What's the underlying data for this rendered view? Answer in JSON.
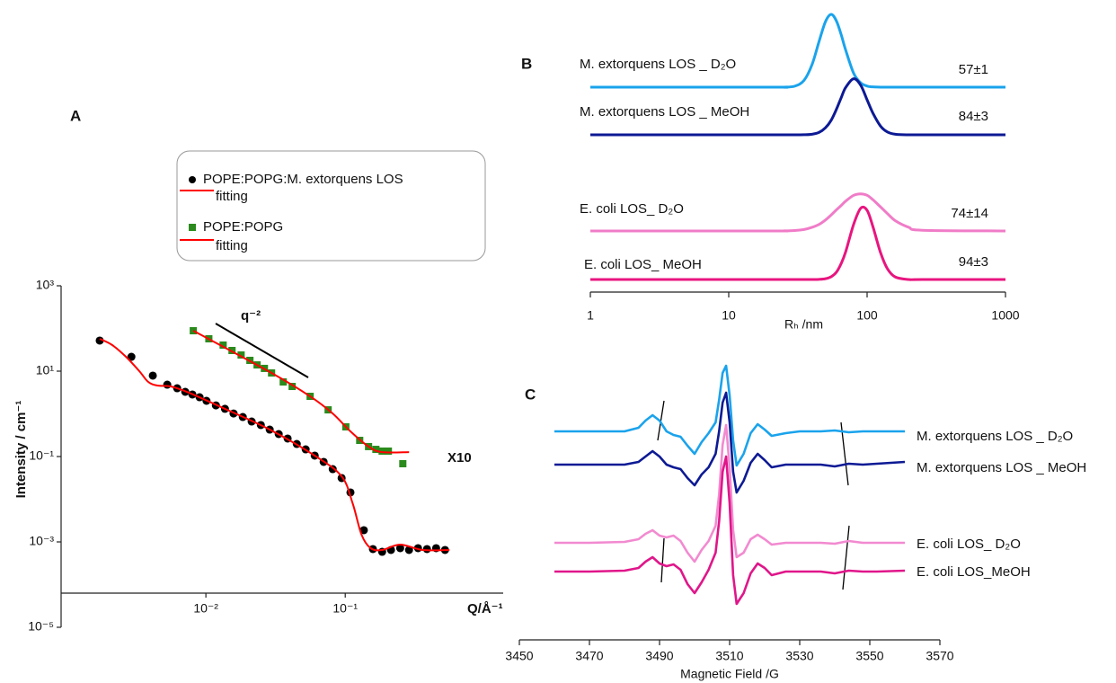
{
  "chart_data": [
    {
      "type": "scatter",
      "panel": "A",
      "xscale": "log",
      "yscale": "log",
      "x_label": "Q/Å⁻¹",
      "y_label": "Intensity / cm⁻¹",
      "xlim": [
        0.000914,
        1.36
      ],
      "ylim": [
        1e-05,
        1000
      ],
      "xticks": [
        {
          "value": 0.01,
          "label": "10⁻²"
        },
        {
          "value": 0.1,
          "label": "10⁻¹"
        }
      ],
      "yticks": [
        {
          "value": 1000,
          "label": "10³"
        },
        {
          "value": 10,
          "label": "10¹"
        },
        {
          "value": 0.1,
          "label": "10⁻¹"
        },
        {
          "value": 0.001,
          "label": "10⁻³"
        },
        {
          "value": 1e-05,
          "label": "10⁻⁵"
        }
      ],
      "annotations": [
        "q⁻²",
        "X10"
      ],
      "series": [
        {
          "name": "POPE:POPG:M. extorquens LOS",
          "color": "#000000",
          "marker": "circle",
          "x": [
            0.00173,
            0.00292,
            0.00416,
            0.00528,
            0.00622,
            0.00711,
            0.008,
            0.00901,
            0.0101,
            0.0118,
            0.0137,
            0.0158,
            0.0184,
            0.0213,
            0.0248,
            0.0287,
            0.0333,
            0.0386,
            0.0449,
            0.052,
            0.0604,
            0.07,
            0.0813,
            0.0942,
            0.109,
            0.136,
            0.158,
            0.184,
            0.213,
            0.248,
            0.287,
            0.333,
            0.386,
            0.449,
            0.52
          ],
          "values": [
            52,
            21.7,
            7.85,
            4.83,
            3.98,
            3.28,
            2.84,
            2.45,
            2.02,
            1.58,
            1.31,
            1.02,
            0.843,
            0.662,
            0.546,
            0.428,
            0.336,
            0.264,
            0.197,
            0.147,
            0.105,
            0.0748,
            0.0507,
            0.0313,
            0.0144,
            0.00188,
            0.000679,
            0.000586,
            0.000647,
            0.000713,
            0.000647,
            0.000713,
            0.000679,
            0.000713,
            0.000647
          ]
        },
        {
          "name": "fitting",
          "color": "#ff0000",
          "marker": "line",
          "x": [
            0.00173,
            0.00213,
            0.00267,
            0.00333,
            0.00386,
            0.00449,
            0.0056,
            0.00754,
            0.0137,
            0.0287,
            0.0604,
            0.0942,
            0.113,
            0.131,
            0.152,
            0.184,
            0.248,
            0.359,
            0.56
          ],
          "values": [
            57.3,
            40.8,
            21.7,
            10,
            5.59,
            4.6,
            4.38,
            3.13,
            1.31,
            0.428,
            0.105,
            0.0344,
            0.00804,
            0.00147,
            0.000713,
            0.000647,
            0.000865,
            0.000647,
            0.000647
          ]
        },
        {
          "name": "POPE:POPG",
          "color": "#2a8a1c",
          "marker": "square",
          "x": [
            0.00812,
            0.0105,
            0.0133,
            0.0154,
            0.0179,
            0.0207,
            0.0233,
            0.0263,
            0.0296,
            0.0359,
            0.0416,
            0.056,
            0.0754,
            0.101,
            0.127,
            0.147,
            0.166,
            0.184,
            0.204,
            0.259
          ],
          "values": [
            88.5,
            57.3,
            40.8,
            30.5,
            23.9,
            17.9,
            14,
            11.6,
            9.08,
            5.59,
            4.38,
            2.57,
            1.24,
            0.496,
            0.239,
            0.171,
            0.147,
            0.134,
            0.134,
            0.0679
          ]
        },
        {
          "name": "fitting",
          "color": "#ff0000",
          "marker": "line",
          "x": [
            0.00812,
            0.0296,
            0.056,
            0.0813,
            0.109,
            0.147,
            0.184,
            0.287
          ],
          "values": [
            88.5,
            9.08,
            2.57,
            1.02,
            0.388,
            0.171,
            0.127,
            0.127
          ]
        }
      ]
    },
    {
      "type": "ridgeline",
      "panel": "B",
      "xscale": "log",
      "x_label": "Rₕ /nm",
      "xlim": [
        1,
        1000
      ],
      "xticks": [
        1,
        10,
        100,
        1000
      ],
      "ylim": [
        0,
        1
      ],
      "x": [
        1,
        20,
        25,
        30,
        35,
        40,
        45,
        50,
        55,
        60,
        65,
        70,
        80,
        90,
        100,
        110,
        125,
        140,
        160,
        200,
        250,
        1000
      ],
      "series": [
        {
          "name": "M. extorquens LOS _ D₂O",
          "color": "#1aa3ec",
          "annotation": "57±1",
          "values": [
            0,
            0,
            0,
            0.014,
            0.093,
            0.31,
            0.63,
            0.9,
            1,
            0.91,
            0.72,
            0.51,
            0.19,
            0.059,
            0.015,
            0.004,
            0,
            0,
            0,
            0,
            0,
            0
          ]
        },
        {
          "name": "M. extorquens LOS _ MeOH",
          "color": "#0d1a94",
          "annotation": "84±3",
          "values": [
            0,
            0,
            0,
            0,
            0.001,
            0.008,
            0.034,
            0.096,
            0.2,
            0.35,
            0.51,
            0.65,
            0.77,
            0.68,
            0.48,
            0.3,
            0.12,
            0.04,
            0.008,
            0,
            0,
            0
          ]
        },
        {
          "name": "E. coli LOS_ D₂O",
          "color": "#f07cc8",
          "annotation": "74±14",
          "values": [
            0,
            0,
            0.001,
            0.006,
            0.02,
            0.05,
            0.09,
            0.15,
            0.22,
            0.29,
            0.35,
            0.41,
            0.49,
            0.51,
            0.49,
            0.43,
            0.33,
            0.24,
            0.14,
            0.05,
            0.01,
            0
          ]
        },
        {
          "name": "E. coli LOS_ MeOH",
          "color": "#e8157f",
          "annotation": "94±3",
          "values": [
            0,
            0,
            0,
            0,
            0,
            0,
            0.002,
            0.011,
            0.038,
            0.1,
            0.22,
            0.38,
            0.76,
            0.98,
            0.95,
            0.73,
            0.37,
            0.15,
            0.034,
            0,
            0,
            0
          ]
        }
      ]
    },
    {
      "type": "line",
      "panel": "C",
      "x_label": "Magnetic  Field /G",
      "xlim": [
        3450,
        3570
      ],
      "xticks": [
        3450,
        3470,
        3490,
        3510,
        3530,
        3550,
        3570
      ],
      "ylim": [
        -20,
        260
      ],
      "x": [
        3460,
        3470,
        3480,
        3484,
        3486,
        3488,
        3490,
        3492,
        3494,
        3496,
        3498,
        3500,
        3502,
        3504,
        3506,
        3507,
        3508,
        3509,
        3510,
        3511,
        3512,
        3514,
        3516,
        3518,
        3520,
        3522,
        3526,
        3530,
        3536,
        3540,
        3544,
        3548,
        3552,
        3560
      ],
      "series": [
        {
          "name": "M. extorquens LOS _ D₂O",
          "color": "#1aa3ec",
          "values": [
            180,
            180,
            180,
            184,
            192,
            198,
            192,
            180,
            176,
            174,
            164,
            155,
            168,
            178,
            190,
            215,
            245,
            253,
            220,
            170,
            142,
            155,
            178,
            188,
            182,
            175,
            178,
            180,
            180,
            181,
            179,
            180,
            180,
            180
          ]
        },
        {
          "name": "M. extorquens LOS _ MeOH",
          "color": "#0d1a94",
          "values": [
            143,
            143,
            143,
            146,
            152,
            158,
            152,
            143,
            140,
            138,
            128,
            120,
            132,
            140,
            155,
            180,
            212,
            223,
            190,
            135,
            112,
            125,
            145,
            155,
            148,
            140,
            143,
            143,
            143,
            141,
            144,
            143,
            144,
            146
          ]
        },
        {
          "name": "E. coli LOS_ D₂O",
          "color": "#f28ad0",
          "values": [
            56,
            56,
            57,
            60,
            66,
            70,
            64,
            62,
            64,
            58,
            45,
            35,
            48,
            58,
            75,
            110,
            165,
            187,
            140,
            70,
            40,
            45,
            60,
            65,
            60,
            54,
            56,
            56,
            56,
            55,
            58,
            56,
            56,
            56
          ]
        },
        {
          "name": "E. coli LOS_MeOH",
          "color": "#e0168a",
          "values": [
            24,
            24,
            25,
            28,
            35,
            40,
            33,
            30,
            32,
            26,
            10,
            0,
            12,
            26,
            45,
            80,
            135,
            152,
            100,
            20,
            -12,
            0,
            22,
            33,
            28,
            20,
            24,
            24,
            24,
            22,
            25,
            24,
            24,
            25
          ]
        }
      ]
    }
  ]
}
